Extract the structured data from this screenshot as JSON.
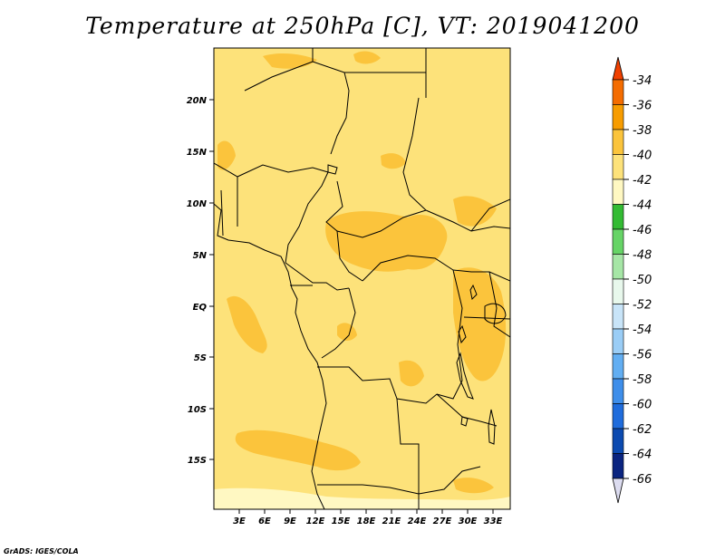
{
  "title": "Temperature at 250hPa [C], VT: 2019041200",
  "credit": "GrADS: IGES/COLA",
  "lat_labels": [
    "20N",
    "15N",
    "10N",
    "5N",
    "EQ",
    "5S",
    "10S",
    "15S"
  ],
  "lon_labels": [
    "3E",
    "6E",
    "9E",
    "12E",
    "15E",
    "18E",
    "21E",
    "24E",
    "27E",
    "30E",
    "33E"
  ],
  "colorbar": {
    "labels": [
      "-34",
      "-36",
      "-38",
      "-40",
      "-42",
      "-44",
      "-46",
      "-48",
      "-50",
      "-52",
      "-54",
      "-56",
      "-58",
      "-60",
      "-62",
      "-64",
      "-66"
    ],
    "colors": [
      "#f04000",
      "#f46c00",
      "#f79c00",
      "#fbc43c",
      "#fde27a",
      "#fff8c2",
      "#33bb33",
      "#66d466",
      "#a6e6a6",
      "#e8f8ec",
      "#c8e4f8",
      "#9acdf6",
      "#62aef2",
      "#3e8eea",
      "#1f6cdc",
      "#0c4ab0",
      "#0a2480",
      "#dcdcf0"
    ]
  },
  "chart_data": {
    "type": "heatmap",
    "title": "Temperature at 250hPa [C], VT: 2019041200",
    "variable": "Temperature at 250hPa",
    "units": "C",
    "valid_time": "2019041200",
    "lon_range": [
      0,
      35
    ],
    "lat_range": [
      -19,
      25
    ],
    "levels": [
      -34,
      -36,
      -38,
      -40,
      -42,
      -44,
      -46,
      -48,
      -50,
      -52,
      -54,
      -56,
      -58,
      -60,
      -62,
      -64,
      -66
    ],
    "dominant_range": [
      -42,
      -40
    ],
    "warmer_patches_range": [
      -40,
      -38
    ],
    "cooler_patches_range": [
      -44,
      -42
    ]
  }
}
